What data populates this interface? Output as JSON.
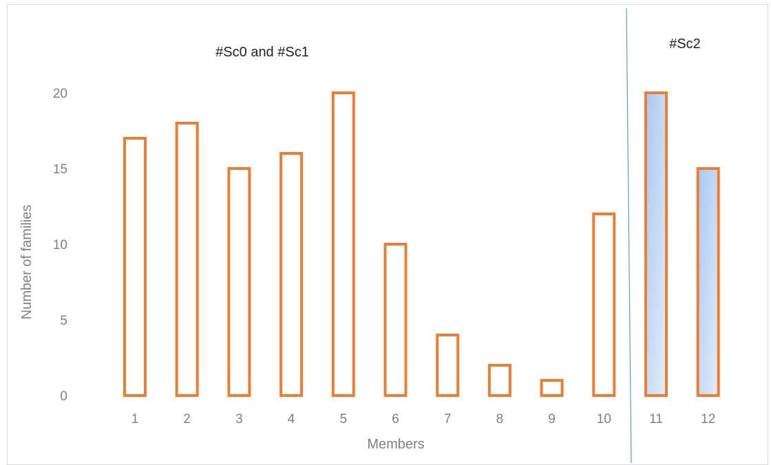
{
  "chart_data": {
    "type": "bar",
    "title": "",
    "xlabel": "Members",
    "ylabel": "Number of families",
    "categories": [
      "1",
      "2",
      "3",
      "4",
      "5",
      "6",
      "7",
      "8",
      "9",
      "10",
      "11",
      "12"
    ],
    "values": [
      17,
      18,
      15,
      16,
      20,
      10,
      4,
      2,
      1,
      12,
      20,
      15
    ],
    "yticks": [
      "0",
      "5",
      "10",
      "15",
      "20"
    ],
    "ylim": [
      0,
      20
    ],
    "grid": false,
    "legend": "none",
    "regions": [
      {
        "label": "#Sc0 and #Sc1",
        "categories": [
          "1",
          "2",
          "3",
          "4",
          "5",
          "6",
          "7",
          "8",
          "9",
          "10"
        ],
        "fill": "none"
      },
      {
        "label": "#Sc2",
        "categories": [
          "11",
          "12"
        ],
        "fill": "gradient-blue"
      }
    ],
    "colors": {
      "bar_outline": "#ED7D31",
      "gradient_top": "#A9C8F0",
      "gradient_bottom": "#E3EDFA",
      "divider": "#5B9BD5",
      "axis_text": "#808080"
    }
  }
}
